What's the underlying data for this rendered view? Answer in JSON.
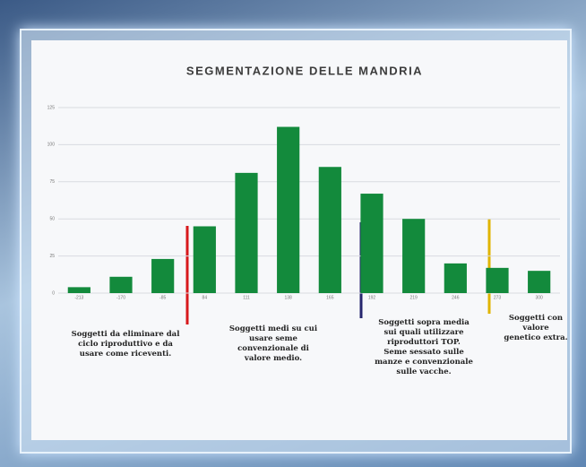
{
  "chart_data": {
    "type": "bar",
    "title": "SEGMENTAZIONE DELLE MANDRIA",
    "categories": [
      "-213",
      "-170",
      "-85",
      "84",
      "111",
      "138",
      "165",
      "192",
      "219",
      "246",
      "273",
      "300"
    ],
    "values": [
      4,
      11,
      23,
      45,
      81,
      112,
      85,
      67,
      50,
      20,
      17,
      15
    ],
    "color": "#138a3c",
    "ylim": [
      0,
      125
    ],
    "yticks": [
      0,
      25,
      50,
      75,
      100,
      125
    ],
    "grid": true,
    "annotations": [
      "Soggetti da eliminare dal ciclo riproduttivo e da usare come riceventi.",
      "Soggetti medi su cui usare seme convenzionale di valore medio.",
      "Soggetti sopra media sui quali utilizzare riproduttori TOP. Seme sessato sulle manze e convenzionale sulle vacche.",
      "Soggetti con valore genetico extra."
    ]
  }
}
